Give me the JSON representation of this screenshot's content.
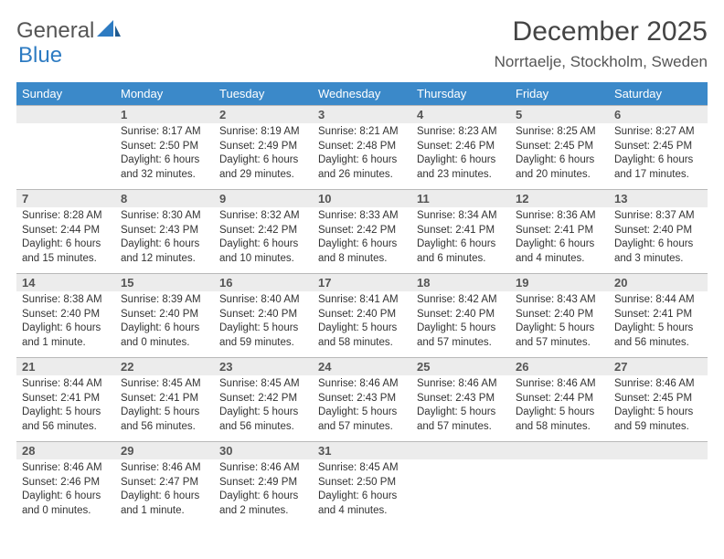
{
  "logo": {
    "word1": "General",
    "word2": "Blue"
  },
  "title": "December 2025",
  "location": "Norrtaelje, Stockholm, Sweden",
  "colors": {
    "header_bg": "#3b89c9",
    "header_text": "#ffffff",
    "daynum_bg": "#ececec",
    "daynum_border": "#b9b9b9",
    "logo_blue": "#2d7bc2",
    "text": "#333333"
  },
  "dayHeaders": [
    "Sunday",
    "Monday",
    "Tuesday",
    "Wednesday",
    "Thursday",
    "Friday",
    "Saturday"
  ],
  "weeks": [
    [
      {
        "n": "",
        "lines": []
      },
      {
        "n": "1",
        "lines": [
          "Sunrise: 8:17 AM",
          "Sunset: 2:50 PM",
          "Daylight: 6 hours and 32 minutes."
        ]
      },
      {
        "n": "2",
        "lines": [
          "Sunrise: 8:19 AM",
          "Sunset: 2:49 PM",
          "Daylight: 6 hours and 29 minutes."
        ]
      },
      {
        "n": "3",
        "lines": [
          "Sunrise: 8:21 AM",
          "Sunset: 2:48 PM",
          "Daylight: 6 hours and 26 minutes."
        ]
      },
      {
        "n": "4",
        "lines": [
          "Sunrise: 8:23 AM",
          "Sunset: 2:46 PM",
          "Daylight: 6 hours and 23 minutes."
        ]
      },
      {
        "n": "5",
        "lines": [
          "Sunrise: 8:25 AM",
          "Sunset: 2:45 PM",
          "Daylight: 6 hours and 20 minutes."
        ]
      },
      {
        "n": "6",
        "lines": [
          "Sunrise: 8:27 AM",
          "Sunset: 2:45 PM",
          "Daylight: 6 hours and 17 minutes."
        ]
      }
    ],
    [
      {
        "n": "7",
        "lines": [
          "Sunrise: 8:28 AM",
          "Sunset: 2:44 PM",
          "Daylight: 6 hours and 15 minutes."
        ]
      },
      {
        "n": "8",
        "lines": [
          "Sunrise: 8:30 AM",
          "Sunset: 2:43 PM",
          "Daylight: 6 hours and 12 minutes."
        ]
      },
      {
        "n": "9",
        "lines": [
          "Sunrise: 8:32 AM",
          "Sunset: 2:42 PM",
          "Daylight: 6 hours and 10 minutes."
        ]
      },
      {
        "n": "10",
        "lines": [
          "Sunrise: 8:33 AM",
          "Sunset: 2:42 PM",
          "Daylight: 6 hours and 8 minutes."
        ]
      },
      {
        "n": "11",
        "lines": [
          "Sunrise: 8:34 AM",
          "Sunset: 2:41 PM",
          "Daylight: 6 hours and 6 minutes."
        ]
      },
      {
        "n": "12",
        "lines": [
          "Sunrise: 8:36 AM",
          "Sunset: 2:41 PM",
          "Daylight: 6 hours and 4 minutes."
        ]
      },
      {
        "n": "13",
        "lines": [
          "Sunrise: 8:37 AM",
          "Sunset: 2:40 PM",
          "Daylight: 6 hours and 3 minutes."
        ]
      }
    ],
    [
      {
        "n": "14",
        "lines": [
          "Sunrise: 8:38 AM",
          "Sunset: 2:40 PM",
          "Daylight: 6 hours and 1 minute."
        ]
      },
      {
        "n": "15",
        "lines": [
          "Sunrise: 8:39 AM",
          "Sunset: 2:40 PM",
          "Daylight: 6 hours and 0 minutes."
        ]
      },
      {
        "n": "16",
        "lines": [
          "Sunrise: 8:40 AM",
          "Sunset: 2:40 PM",
          "Daylight: 5 hours and 59 minutes."
        ]
      },
      {
        "n": "17",
        "lines": [
          "Sunrise: 8:41 AM",
          "Sunset: 2:40 PM",
          "Daylight: 5 hours and 58 minutes."
        ]
      },
      {
        "n": "18",
        "lines": [
          "Sunrise: 8:42 AM",
          "Sunset: 2:40 PM",
          "Daylight: 5 hours and 57 minutes."
        ]
      },
      {
        "n": "19",
        "lines": [
          "Sunrise: 8:43 AM",
          "Sunset: 2:40 PM",
          "Daylight: 5 hours and 57 minutes."
        ]
      },
      {
        "n": "20",
        "lines": [
          "Sunrise: 8:44 AM",
          "Sunset: 2:41 PM",
          "Daylight: 5 hours and 56 minutes."
        ]
      }
    ],
    [
      {
        "n": "21",
        "lines": [
          "Sunrise: 8:44 AM",
          "Sunset: 2:41 PM",
          "Daylight: 5 hours and 56 minutes."
        ]
      },
      {
        "n": "22",
        "lines": [
          "Sunrise: 8:45 AM",
          "Sunset: 2:41 PM",
          "Daylight: 5 hours and 56 minutes."
        ]
      },
      {
        "n": "23",
        "lines": [
          "Sunrise: 8:45 AM",
          "Sunset: 2:42 PM",
          "Daylight: 5 hours and 56 minutes."
        ]
      },
      {
        "n": "24",
        "lines": [
          "Sunrise: 8:46 AM",
          "Sunset: 2:43 PM",
          "Daylight: 5 hours and 57 minutes."
        ]
      },
      {
        "n": "25",
        "lines": [
          "Sunrise: 8:46 AM",
          "Sunset: 2:43 PM",
          "Daylight: 5 hours and 57 minutes."
        ]
      },
      {
        "n": "26",
        "lines": [
          "Sunrise: 8:46 AM",
          "Sunset: 2:44 PM",
          "Daylight: 5 hours and 58 minutes."
        ]
      },
      {
        "n": "27",
        "lines": [
          "Sunrise: 8:46 AM",
          "Sunset: 2:45 PM",
          "Daylight: 5 hours and 59 minutes."
        ]
      }
    ],
    [
      {
        "n": "28",
        "lines": [
          "Sunrise: 8:46 AM",
          "Sunset: 2:46 PM",
          "Daylight: 6 hours and 0 minutes."
        ]
      },
      {
        "n": "29",
        "lines": [
          "Sunrise: 8:46 AM",
          "Sunset: 2:47 PM",
          "Daylight: 6 hours and 1 minute."
        ]
      },
      {
        "n": "30",
        "lines": [
          "Sunrise: 8:46 AM",
          "Sunset: 2:49 PM",
          "Daylight: 6 hours and 2 minutes."
        ]
      },
      {
        "n": "31",
        "lines": [
          "Sunrise: 8:45 AM",
          "Sunset: 2:50 PM",
          "Daylight: 6 hours and 4 minutes."
        ]
      },
      {
        "n": "",
        "lines": []
      },
      {
        "n": "",
        "lines": []
      },
      {
        "n": "",
        "lines": []
      }
    ]
  ]
}
